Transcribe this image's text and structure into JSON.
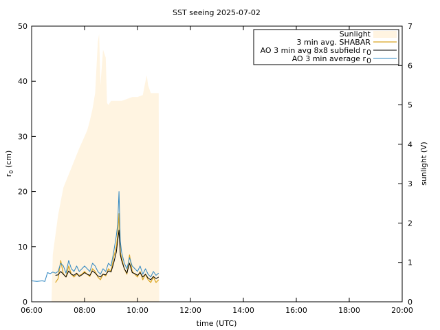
{
  "chart_data": {
    "type": "line",
    "title": "SST seeing 2025-07-02",
    "xlabel": "time (UTC)",
    "ylabel": "r",
    "ylabel_sub": "0",
    "ylabel_unit": " (cm)",
    "y2label": "sunlight (V)",
    "xlim": [
      6,
      20
    ],
    "ylim": [
      0,
      50
    ],
    "y2lim": [
      0,
      7
    ],
    "xticks": [
      6,
      8,
      10,
      12,
      14,
      16,
      18,
      20
    ],
    "xtick_labels": [
      "06:00",
      "08:00",
      "10:00",
      "12:00",
      "14:00",
      "16:00",
      "18:00",
      "20:00"
    ],
    "yticks": [
      0,
      10,
      20,
      30,
      40,
      50
    ],
    "ytick_labels": [
      "0",
      "10",
      "20",
      "30",
      "40",
      "50"
    ],
    "y2ticks": [
      0,
      1,
      2,
      3,
      4,
      5,
      6,
      7
    ],
    "y2tick_labels": [
      "0",
      "1",
      "2",
      "3",
      "4",
      "5",
      "6",
      "7"
    ],
    "grid": false,
    "legend_position": "top-right",
    "legend": {
      "sunlight": "Sunlight",
      "shabar": "3 min avg. SHABAR",
      "ao_subfield": "AO 3 min avg 8x8 subfield r",
      "ao_avg": "AO 3 min average r",
      "subscript": "0"
    },
    "series": [
      {
        "key": "sunlight",
        "name": "Sunlight",
        "axis": "y2",
        "style": "filled-area",
        "color": "#fff4e1",
        "x": [
          6.75,
          6.8,
          7.0,
          7.2,
          7.5,
          7.8,
          8.0,
          8.1,
          8.2,
          8.3,
          8.4,
          8.5,
          8.55,
          8.6,
          8.7,
          8.8,
          8.85,
          8.9,
          9.0,
          9.2,
          9.4,
          9.6,
          9.8,
          10.0,
          10.2,
          10.3,
          10.35,
          10.4,
          10.5,
          10.6,
          10.7,
          10.8,
          10.82
        ],
        "y": [
          0.0,
          1.2,
          2.2,
          2.9,
          3.4,
          3.9,
          4.2,
          4.35,
          4.6,
          4.9,
          5.3,
          6.6,
          6.8,
          5.5,
          6.4,
          6.2,
          5.05,
          5.0,
          5.1,
          5.1,
          5.1,
          5.15,
          5.2,
          5.2,
          5.25,
          5.6,
          5.75,
          5.5,
          5.3,
          5.3,
          5.3,
          5.3,
          0.0
        ]
      },
      {
        "key": "shabar",
        "name": "3 min avg. SHABAR",
        "axis": "y",
        "color": "#daa520",
        "x": [
          6.9,
          7.0,
          7.1,
          7.2,
          7.3,
          7.4,
          7.5,
          7.6,
          7.7,
          7.8,
          7.9,
          8.0,
          8.1,
          8.2,
          8.3,
          8.4,
          8.5,
          8.6,
          8.7,
          8.8,
          8.9,
          9.0,
          9.1,
          9.2,
          9.25,
          9.3,
          9.35,
          9.4,
          9.5,
          9.6,
          9.7,
          9.8,
          9.9,
          10.0,
          10.1,
          10.2,
          10.3,
          10.4,
          10.5,
          10.6,
          10.7,
          10.8
        ],
        "y": [
          3.5,
          4.2,
          7.5,
          5.0,
          4.5,
          6.5,
          5.0,
          4.5,
          5.0,
          4.8,
          5.0,
          5.5,
          5.0,
          4.6,
          6.0,
          5.5,
          4.5,
          4.0,
          5.0,
          4.7,
          6.0,
          5.5,
          8.0,
          10.0,
          12.0,
          16.0,
          9.0,
          8.0,
          6.0,
          5.0,
          8.5,
          5.5,
          5.0,
          4.5,
          5.5,
          4.0,
          5.0,
          4.0,
          3.5,
          4.5,
          3.5,
          4.0
        ]
      },
      {
        "key": "ao_subfield",
        "name": "AO 3 min avg 8x8 subfield r0",
        "axis": "y",
        "color": "#000000",
        "x": [
          6.9,
          7.0,
          7.1,
          7.2,
          7.3,
          7.4,
          7.5,
          7.6,
          7.7,
          7.8,
          7.9,
          8.0,
          8.1,
          8.2,
          8.3,
          8.4,
          8.5,
          8.6,
          8.7,
          8.8,
          8.9,
          9.0,
          9.1,
          9.2,
          9.25,
          9.3,
          9.35,
          9.4,
          9.5,
          9.6,
          9.7,
          9.8,
          9.9,
          10.0,
          10.1,
          10.2,
          10.3,
          10.4,
          10.5,
          10.6,
          10.7,
          10.8
        ],
        "y": [
          4.8,
          4.9,
          5.5,
          5.0,
          4.5,
          5.6,
          5.0,
          4.8,
          5.2,
          4.6,
          4.9,
          5.3,
          5.0,
          4.8,
          5.6,
          5.2,
          4.7,
          4.5,
          5.0,
          4.9,
          5.6,
          5.4,
          7.0,
          9.0,
          11.0,
          13.0,
          8.5,
          7.5,
          6.0,
          5.2,
          7.0,
          5.3,
          5.1,
          4.8,
          5.3,
          4.5,
          5.0,
          4.3,
          4.0,
          4.6,
          4.2,
          4.5
        ]
      },
      {
        "key": "ao_avg",
        "name": "AO 3 min average r0",
        "axis": "y",
        "color": "#2e86c1",
        "x": [
          6.0,
          6.2,
          6.4,
          6.5,
          6.6,
          6.7,
          6.8,
          6.9,
          7.0,
          7.1,
          7.2,
          7.3,
          7.4,
          7.5,
          7.6,
          7.7,
          7.8,
          7.9,
          8.0,
          8.1,
          8.2,
          8.3,
          8.4,
          8.5,
          8.6,
          8.7,
          8.8,
          8.9,
          9.0,
          9.1,
          9.2,
          9.25,
          9.3,
          9.35,
          9.4,
          9.5,
          9.6,
          9.7,
          9.8,
          9.9,
          10.0,
          10.1,
          10.2,
          10.3,
          10.4,
          10.5,
          10.6,
          10.7,
          10.8
        ],
        "y": [
          3.8,
          3.7,
          3.8,
          3.7,
          5.3,
          5.1,
          5.4,
          5.2,
          5.5,
          7.0,
          6.5,
          5.2,
          7.5,
          6.0,
          5.5,
          6.5,
          5.5,
          6.0,
          6.5,
          6.0,
          5.5,
          7.0,
          6.5,
          5.5,
          5.0,
          6.0,
          5.5,
          7.0,
          6.5,
          9.0,
          12.0,
          14.0,
          20.0,
          11.0,
          9.0,
          7.0,
          6.0,
          8.0,
          6.5,
          6.0,
          5.5,
          6.5,
          5.0,
          6.0,
          5.0,
          4.5,
          5.5,
          4.8,
          5.2
        ]
      }
    ]
  }
}
